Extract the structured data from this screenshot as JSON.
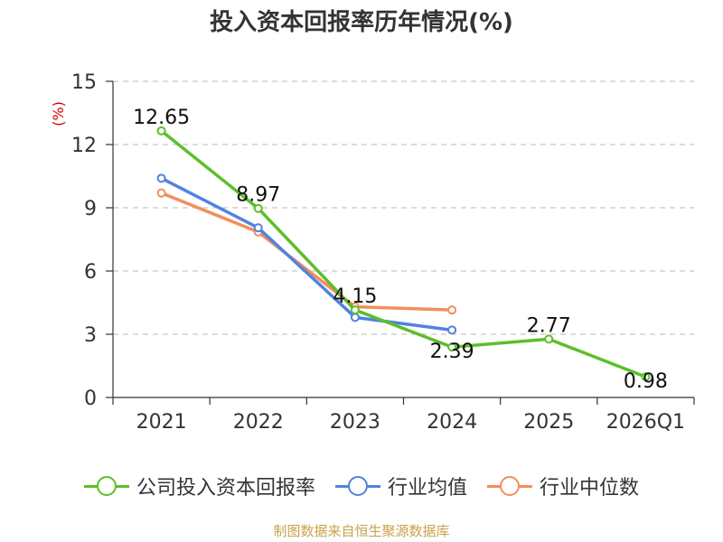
{
  "colors": {
    "company": "#5cbf2a",
    "industry_avg": "#5282e0",
    "industry_median": "#f28e5b",
    "axis": "#333333",
    "grid": "#c8c8c8",
    "unit": "#d40000",
    "source": "#c8a24a"
  },
  "chart_data": {
    "type": "line",
    "title": "投入资本回报率历年情况(%)",
    "ylabel": "(%)",
    "xlabel": "",
    "categories": [
      "2021",
      "2022",
      "2023",
      "2024",
      "2025",
      "2026Q1"
    ],
    "ylim": [
      0,
      15
    ],
    "yticks": [
      0,
      3,
      6,
      9,
      12,
      15
    ],
    "grid": true,
    "series": [
      {
        "name": "公司投入资本回报率",
        "key": "company",
        "values": [
          12.65,
          8.97,
          4.15,
          2.39,
          2.77,
          0.98
        ],
        "labels": [
          "12.65",
          "8.97",
          "4.15",
          "2.39",
          "2.77",
          "0.98"
        ]
      },
      {
        "name": "行业均值",
        "key": "industry_avg",
        "values": [
          10.4,
          8.05,
          3.8,
          3.2,
          null,
          null
        ]
      },
      {
        "name": "行业中位数",
        "key": "industry_median",
        "values": [
          9.7,
          7.85,
          4.3,
          4.15,
          null,
          null
        ]
      }
    ],
    "legend_position": "bottom"
  },
  "legend": [
    "公司投入资本回报率",
    "行业均值",
    "行业中位数"
  ],
  "source_note": "制图数据来自恒生聚源数据库"
}
